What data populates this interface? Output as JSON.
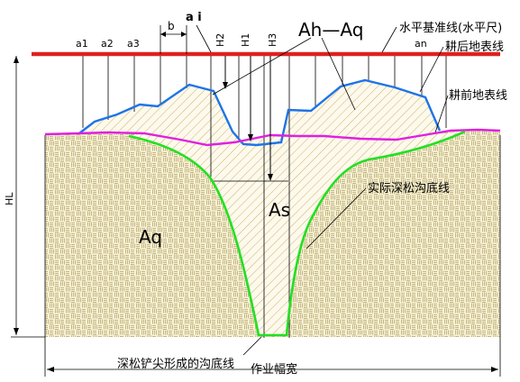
{
  "labels": {
    "ai": "a i",
    "b": "b",
    "a1": "a1",
    "a2": "a2",
    "a3": "a3",
    "an": "an",
    "H1": "H1",
    "H2": "H2",
    "H3": "H3",
    "HL": "HL",
    "Ah_minus_Aq": "Ah—Aq",
    "As": "As",
    "Aq": "Aq",
    "datum_line": "水平基准线(水平尺)",
    "after_surface": "耕后地表线",
    "before_surface": "耕前地表线",
    "actual_furrow": "实际深松沟底线",
    "tip_furrow": "深松铲尖形成的沟底线",
    "working_width": "作业幅宽"
  },
  "colors": {
    "datum": "#e02020",
    "after_surface": "#1e74e8",
    "before_surface": "#e020e0",
    "furrow": "#22e022",
    "soil_fill": "#f5f0d6",
    "soil_pattern": "#b9aa6a",
    "hatch": "#c9b36c"
  }
}
